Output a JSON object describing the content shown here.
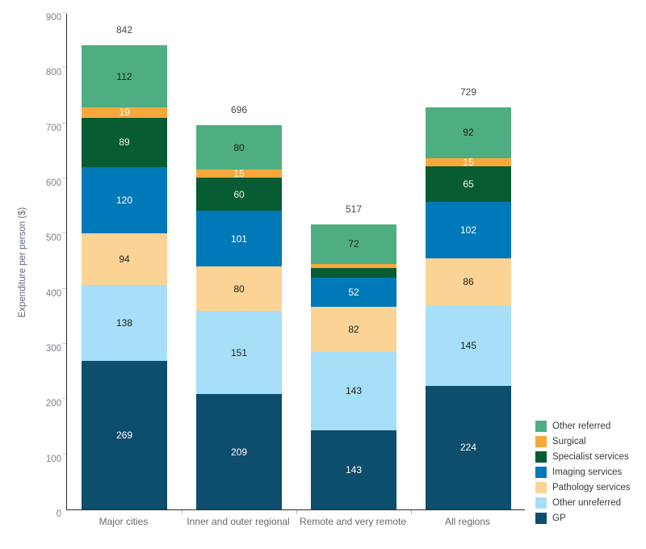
{
  "chart_data": {
    "type": "bar",
    "stacked": true,
    "title": "",
    "ylabel": "Expenditure per person ($)",
    "xlabel": "",
    "ylim": [
      0,
      900
    ],
    "yticks": [
      0,
      100,
      200,
      300,
      400,
      500,
      600,
      700,
      800,
      900
    ],
    "grid": false,
    "legend_position": "right-bottom",
    "categories": [
      "Major cities",
      "Inner and outer regional",
      "Remote and very remote",
      "All regions"
    ],
    "totals": [
      "842",
      "696",
      "517",
      "729"
    ],
    "series": [
      {
        "name": "GP",
        "color": "#0d4d6d",
        "label_color": "#ffffff",
        "values": [
          269,
          209,
          143,
          224
        ],
        "labels": [
          "269",
          "209",
          "143",
          "224"
        ]
      },
      {
        "name": "Other unreferred",
        "color": "#a6dff7",
        "label_color": "#222222",
        "values": [
          138,
          151,
          143,
          145
        ],
        "labels": [
          "138",
          "151",
          "143",
          "145"
        ]
      },
      {
        "name": "Pathology services",
        "color": "#fbd394",
        "label_color": "#222222",
        "values": [
          94,
          80,
          82,
          86
        ],
        "labels": [
          "94",
          "80",
          "82",
          "86"
        ]
      },
      {
        "name": "Imaging services",
        "color": "#0079b8",
        "label_color": "#ffffff",
        "values": [
          120,
          101,
          52,
          102
        ],
        "labels": [
          "120",
          "101",
          "52",
          "102"
        ]
      },
      {
        "name": "Specialist services",
        "color": "#085c33",
        "label_color": "#f7f3dd",
        "values": [
          89,
          60,
          18,
          65
        ],
        "labels": [
          "89",
          "60",
          null,
          "65"
        ]
      },
      {
        "name": "Surgical",
        "color": "#f7a83c",
        "label_color": "#ffffff",
        "values": [
          19,
          15,
          7,
          15
        ],
        "labels": [
          "19",
          "15",
          null,
          "15"
        ]
      },
      {
        "name": "Other referred",
        "color": "#4fae81",
        "label_color": "#222222",
        "values": [
          112,
          80,
          72,
          92
        ],
        "labels": [
          "112",
          "80",
          "72",
          "92"
        ]
      }
    ],
    "legend": [
      "Other referred",
      "Surgical",
      "Specialist services",
      "Imaging services",
      "Pathology services",
      "Other unreferred",
      "GP"
    ]
  }
}
